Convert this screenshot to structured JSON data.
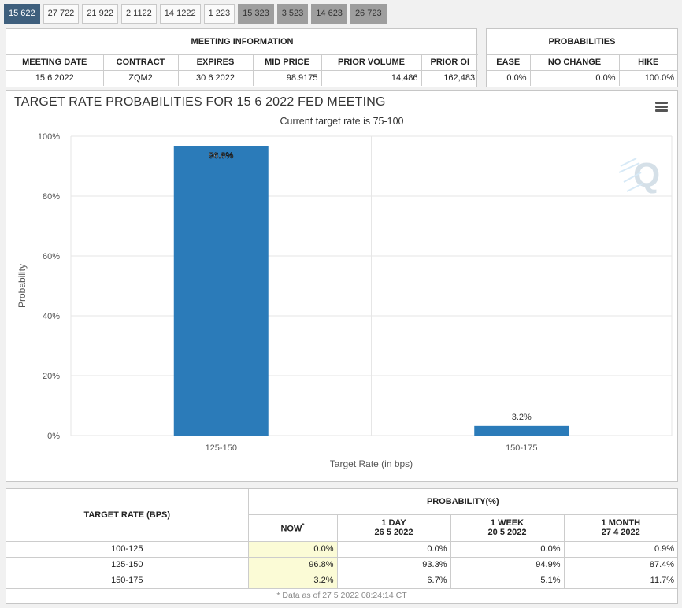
{
  "tabs": [
    {
      "label": "15 622",
      "state": "active"
    },
    {
      "label": "27 722",
      "state": "normal"
    },
    {
      "label": "21 922",
      "state": "normal"
    },
    {
      "label": "2 1122",
      "state": "normal"
    },
    {
      "label": "14 1222",
      "state": "normal"
    },
    {
      "label": "1 223",
      "state": "normal"
    },
    {
      "label": "15 323",
      "state": "grey"
    },
    {
      "label": "3 523",
      "state": "grey"
    },
    {
      "label": "14 623",
      "state": "grey"
    },
    {
      "label": "26 723",
      "state": "grey"
    }
  ],
  "meeting_info": {
    "title": "MEETING INFORMATION",
    "headers": [
      "MEETING DATE",
      "CONTRACT",
      "EXPIRES",
      "MID PRICE",
      "PRIOR VOLUME",
      "PRIOR OI"
    ],
    "values": [
      "15 6 2022",
      "ZQM2",
      "30 6 2022",
      "98.9175",
      "14,486",
      "162,483"
    ]
  },
  "probabilities": {
    "title": "PROBABILITIES",
    "headers": [
      "EASE",
      "NO CHANGE",
      "HIKE"
    ],
    "values": [
      "0.0%",
      "0.0%",
      "100.0%"
    ]
  },
  "chart": {
    "title": "TARGET RATE PROBABILITIES FOR 15 6 2022 FED MEETING",
    "subtitle": "Current target rate is 75-100"
  },
  "chart_data": {
    "type": "bar",
    "categories": [
      "125-150",
      "150-175"
    ],
    "values": [
      96.8,
      3.2
    ],
    "data_labels": [
      "96.8%",
      "3.2%"
    ],
    "xlabel": "Target Rate (in bps)",
    "ylabel": "Probability",
    "ylim": [
      0,
      100
    ],
    "yticks": [
      "0%",
      "20%",
      "40%",
      "60%",
      "80%",
      "100%"
    ],
    "grid": true,
    "bar_color": "#2b7bb9"
  },
  "prob_table": {
    "row_header": "TARGET RATE (BPS)",
    "group_header": "PROBABILITY(%)",
    "columns": [
      {
        "label": "NOW",
        "sup": "*",
        "date": ""
      },
      {
        "label": "1 DAY",
        "sup": "",
        "date": "26 5 2022"
      },
      {
        "label": "1 WEEK",
        "sup": "",
        "date": "20 5 2022"
      },
      {
        "label": "1 MONTH",
        "sup": "",
        "date": "27 4 2022"
      }
    ],
    "rows": [
      {
        "rate": "100-125",
        "values": [
          "0.0%",
          "0.0%",
          "0.0%",
          "0.9%"
        ]
      },
      {
        "rate": "125-150",
        "values": [
          "96.8%",
          "93.3%",
          "94.9%",
          "87.4%"
        ]
      },
      {
        "rate": "150-175",
        "values": [
          "3.2%",
          "6.7%",
          "5.1%",
          "11.7%"
        ]
      }
    ],
    "footnote": "* Data as of 27 5 2022 08:24:14 CT"
  },
  "colors": {
    "active_tab": "#3e5f7d",
    "future_tab": "#9e9e9e",
    "highlight_cell": "#fbfbd6"
  }
}
